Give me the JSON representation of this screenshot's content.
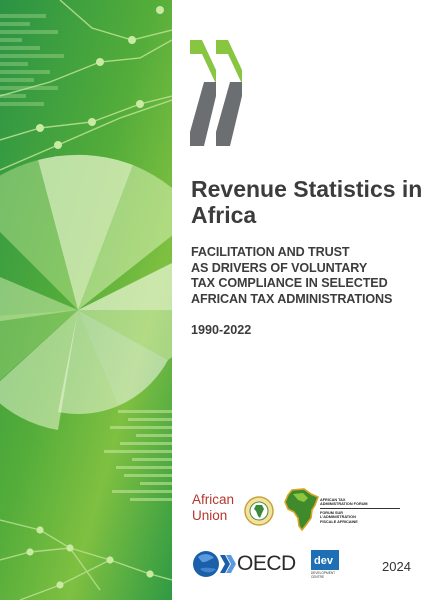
{
  "cover": {
    "title": "Revenue Statistics in Africa",
    "subtitle": "FACILITATION AND TRUST\nAS DRIVERS OF VOLUNTARY\nTAX COMPLIANCE IN SELECTED\nAFRICAN TAX ADMINISTRATIONS",
    "period": "1990-2022",
    "publication_year": "2024"
  },
  "logos": {
    "african_union": {
      "line1": "African",
      "line2": "Union"
    },
    "atf": {
      "line1": "AFRICAN TAX",
      "line2": "ADMINISTRATION FORUM",
      "line3": "FORUM SUR",
      "line4": "L'ADMINISTRATION",
      "line5": "FISCALE AFRICAINE"
    },
    "oecd": {
      "name": "OECD"
    },
    "dev_centre": {
      "name": "dev",
      "line1": "DEVELOPMENT",
      "line2": "CENTRE"
    }
  },
  "colors": {
    "panel_green_dark": "#2f9a43",
    "panel_green_light": "#8cc63f",
    "oecd_chevron_green": "#88c540",
    "oecd_chevron_grey": "#6b6f72",
    "title_text": "#3c3c3c"
  }
}
